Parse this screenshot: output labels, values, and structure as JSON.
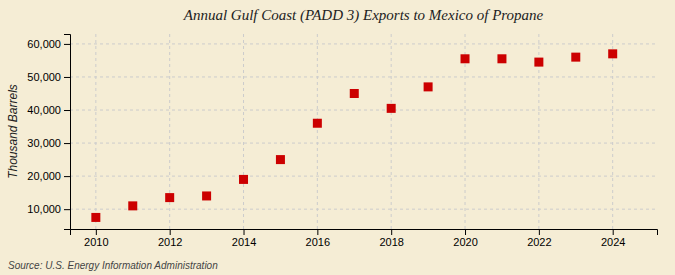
{
  "chart_data": {
    "type": "scatter",
    "title": "Annual Gulf Coast (PADD 3) Exports to Mexico of Propane",
    "ylabel": "Thousand Barrels",
    "source": "Source: U.S. Energy Information Administration",
    "x": [
      2010,
      2011,
      2012,
      2013,
      2014,
      2015,
      2016,
      2017,
      2018,
      2019,
      2020,
      2021,
      2022,
      2023,
      2024
    ],
    "values": [
      7500,
      11000,
      13500,
      14000,
      19000,
      25000,
      36000,
      45000,
      40500,
      47000,
      55500,
      55500,
      54500,
      56000,
      57000
    ],
    "color": "#cc0000",
    "marker": "square",
    "xlim": [
      2009.3,
      2025.2
    ],
    "xticks": [
      2010,
      2012,
      2014,
      2016,
      2018,
      2020,
      2022,
      2024
    ],
    "ylim": [
      4000,
      63000
    ],
    "yticks": [
      {
        "value": 10000,
        "label": "10,000"
      },
      {
        "value": 20000,
        "label": "20,000"
      },
      {
        "value": 30000,
        "label": "30,000"
      },
      {
        "value": 40000,
        "label": "40,000"
      },
      {
        "value": 50000,
        "label": "50,000"
      },
      {
        "value": 60000,
        "label": "60,000"
      }
    ],
    "grid": true
  }
}
